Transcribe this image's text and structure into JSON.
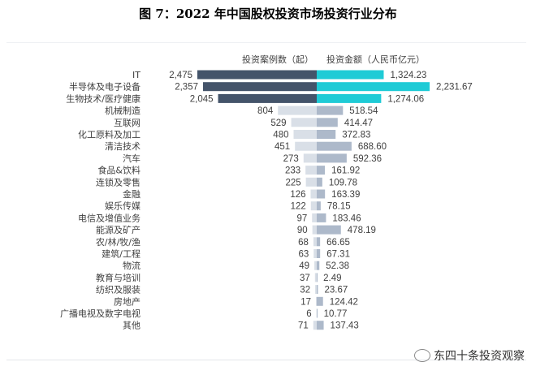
{
  "title": "图 7：2022 年中国股权投资市场投资行业分布",
  "brand": "东四十条投资观察",
  "chart_data": {
    "type": "bar",
    "orientation": "horizontal-butterfly",
    "categories": [
      "IT",
      "半导体及电子设备",
      "生物技术/医疗健康",
      "机械制造",
      "互联网",
      "化工原料及加工",
      "清洁技术",
      "汽车",
      "食品&饮料",
      "连锁及零售",
      "金融",
      "娱乐传媒",
      "电信及增值业务",
      "能源及矿产",
      "农/林/牧/渔",
      "建筑/工程",
      "物流",
      "教育与培训",
      "纺织及服装",
      "房地产",
      "广播电视及数字电视",
      "其他"
    ],
    "series": [
      {
        "name": "投资案例数（起）",
        "side": "left",
        "values": [
          2475,
          2357,
          2045,
          804,
          529,
          480,
          451,
          273,
          233,
          225,
          126,
          122,
          97,
          90,
          68,
          63,
          49,
          37,
          32,
          17,
          6,
          71
        ],
        "labels": [
          "2,475",
          "2,357",
          "2,045",
          "804",
          "529",
          "480",
          "451",
          "273",
          "233",
          "225",
          "126",
          "122",
          "97",
          "90",
          "68",
          "63",
          "49",
          "37",
          "32",
          "17",
          "6",
          "71"
        ]
      },
      {
        "name": "投资金额（人民币亿元）",
        "side": "right",
        "values": [
          1324.23,
          2231.67,
          1274.06,
          518.54,
          414.47,
          372.83,
          688.6,
          592.36,
          161.92,
          109.78,
          163.39,
          78.15,
          183.46,
          478.19,
          66.65,
          67.31,
          52.38,
          2.49,
          23.67,
          124.42,
          10.77,
          137.43
        ],
        "labels": [
          "1,324.23",
          "2,231.67",
          "1,274.06",
          "518.54",
          "414.47",
          "372.83",
          "688.60",
          "592.36",
          "161.92",
          "109.78",
          "163.39",
          "78.15",
          "183.46",
          "478.19",
          "66.65",
          "67.31",
          "52.38",
          "2.49",
          "23.67",
          "124.42",
          "10.77",
          "137.43"
        ]
      }
    ],
    "highlight_top": 3,
    "colors": {
      "left_top": "#44546a",
      "right_top": "#1fcbd6",
      "left_rest": "#d9dfe7",
      "right_rest": "#adb9ca"
    }
  }
}
